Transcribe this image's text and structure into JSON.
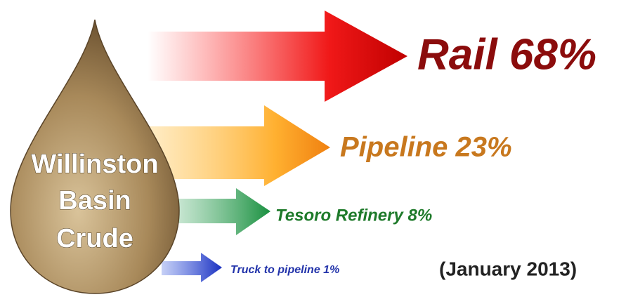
{
  "drop": {
    "lines": [
      "Willinston",
      "Basin",
      "Crude"
    ]
  },
  "flows": [
    {
      "label": "Rail 68%"
    },
    {
      "label": "Pipeline 23%"
    },
    {
      "label": "Tesoro Refinery 8%"
    },
    {
      "label": "Truck to pipeline 1%"
    }
  ],
  "note": "(January 2013)"
}
